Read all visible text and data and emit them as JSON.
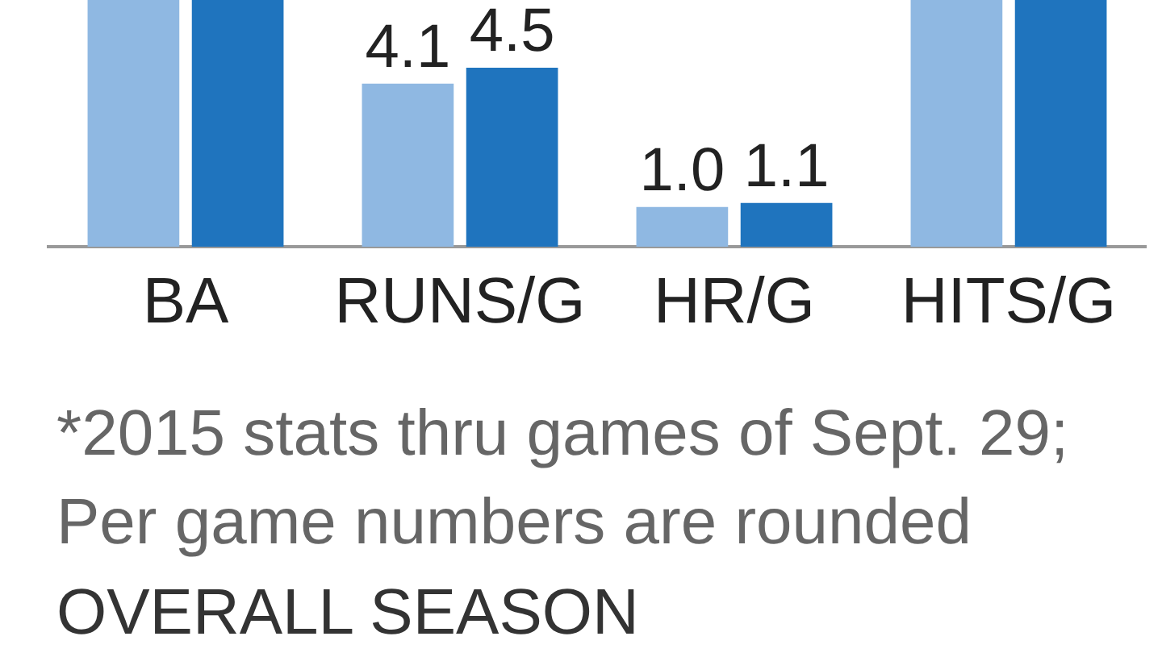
{
  "chart_data": {
    "type": "bar",
    "categories": [
      "BA",
      "RUNS/G",
      "HR/G",
      "HITS/G"
    ],
    "series": [
      {
        "color": "#8fb8e2",
        "values": [
          6.2,
          4.1,
          1.0,
          6.2
        ],
        "value_labels": [
          null,
          "4.1",
          "1.0",
          null
        ]
      },
      {
        "color": "#1f74be",
        "values": [
          6.2,
          4.5,
          1.1,
          6.2
        ],
        "value_labels": [
          null,
          "4.5",
          "1.1",
          null
        ]
      }
    ],
    "ylim": [
      0,
      6.2
    ],
    "grid": false,
    "legend": false,
    "annotations": [
      "*2015 stats thru games of Sept. 29; Per game numbers are rounded",
      "OVERALL SEASON"
    ]
  }
}
